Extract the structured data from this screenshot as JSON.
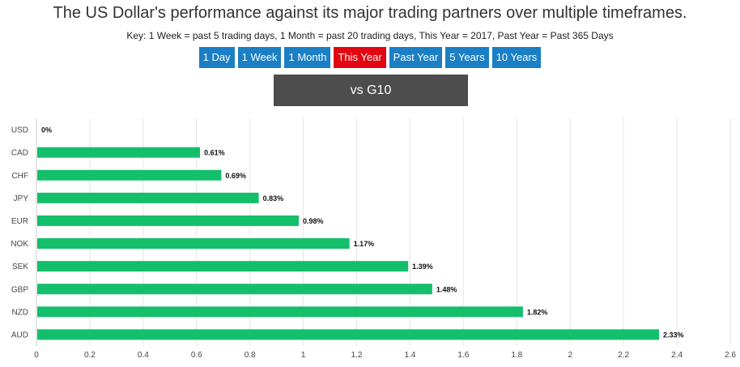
{
  "header": {
    "title": "The US Dollar's performance against its major trading partners over multiple timeframes.",
    "subtitle": "Key: 1 Week = past 5 trading days, 1 Month = past 20 trading days, This Year = 2017, Past Year = Past 365 Days"
  },
  "tabs": [
    {
      "label": "1 Day",
      "active": false
    },
    {
      "label": "1 Week",
      "active": false
    },
    {
      "label": "1 Month",
      "active": false
    },
    {
      "label": "This Year",
      "active": true
    },
    {
      "label": "Past Year",
      "active": false
    },
    {
      "label": "5 Years",
      "active": false
    },
    {
      "label": "10 Years",
      "active": false
    }
  ],
  "group_banner": "vs G10",
  "colors": {
    "bar": "#13bf6b",
    "tab": "#1a7fc4",
    "tab_active": "#e20613",
    "banner": "#4d4d4d",
    "grid": "#e6e6e6"
  },
  "chart_data": {
    "type": "bar",
    "orientation": "horizontal",
    "title": "vs G10",
    "categories": [
      "USD",
      "CAD",
      "CHF",
      "JPY",
      "EUR",
      "NOK",
      "SEK",
      "GBP",
      "NZD",
      "AUD"
    ],
    "values": [
      0,
      0.61,
      0.69,
      0.83,
      0.98,
      1.17,
      1.39,
      1.48,
      1.82,
      2.33
    ],
    "value_labels": [
      "0%",
      "0.61%",
      "0.69%",
      "0.83%",
      "0.98%",
      "1.17%",
      "1.39%",
      "1.48%",
      "1.82%",
      "2.33%"
    ],
    "xlim": [
      0,
      2.6
    ],
    "xticks": [
      0,
      0.2,
      0.4,
      0.6,
      0.8,
      1,
      1.2,
      1.4,
      1.6,
      1.8,
      2,
      2.2,
      2.4,
      2.6
    ],
    "xlabel": "",
    "ylabel": "",
    "grid": true
  }
}
